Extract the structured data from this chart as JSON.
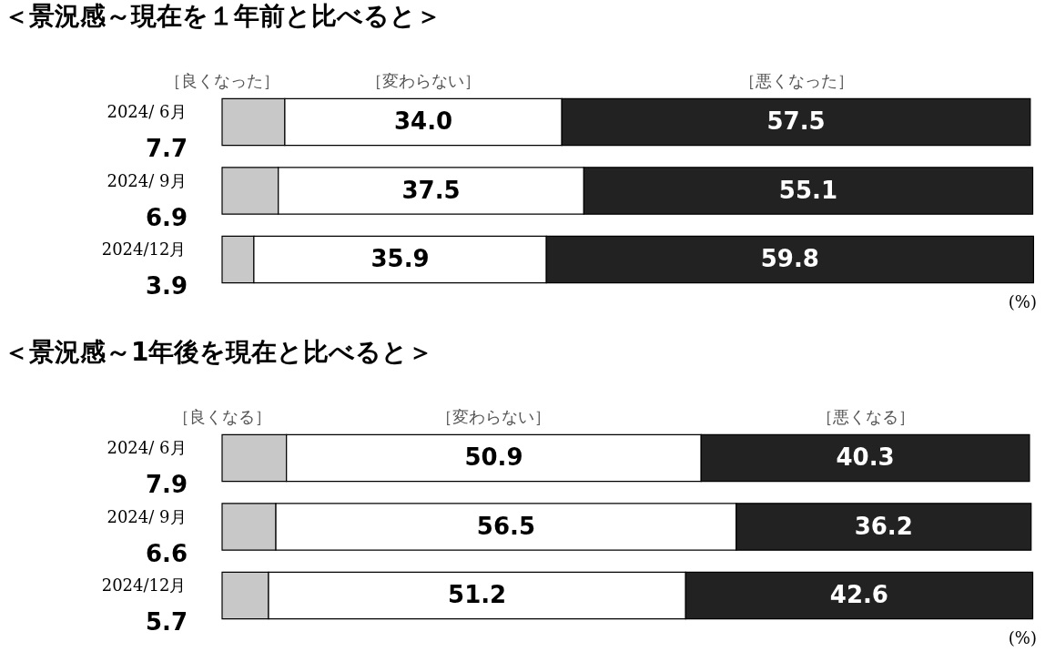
{
  "chart_data": [
    {
      "type": "bar",
      "title": "＜景況感～現在を１年前と比べると＞",
      "orientation": "horizontal",
      "stacked": true,
      "categories": [
        "2024/ 6月",
        "2024/ 9月",
        "2024/12月"
      ],
      "series": [
        {
          "name": "［良くなった］",
          "color": "#c8c8c8",
          "values": [
            7.7,
            6.9,
            3.9
          ],
          "value_labels": [
            "7.7",
            "6.9",
            "3.9"
          ]
        },
        {
          "name": "［変わらない］",
          "color": "#ffffff",
          "values": [
            34.0,
            37.5,
            35.9
          ],
          "value_labels": [
            "34.0",
            "37.5",
            "35.9"
          ]
        },
        {
          "name": "［悪くなった］",
          "color": "#222222",
          "values": [
            57.5,
            55.1,
            59.8
          ],
          "value_labels": [
            "57.5",
            "55.1",
            "59.8"
          ]
        }
      ],
      "xlim": [
        0,
        100
      ],
      "tick_labels": "y",
      "legend": false,
      "annotations": [
        "(%)"
      ]
    },
    {
      "type": "bar",
      "title": "＜景況感～1年後を現在と比べると＞",
      "orientation": "horizontal",
      "stacked": true,
      "categories": [
        "2024/ 6月",
        "2024/ 9月",
        "2024/12月"
      ],
      "series": [
        {
          "name": "［良くなる］",
          "color": "#c8c8c8",
          "values": [
            7.9,
            6.6,
            5.7
          ],
          "value_labels": [
            "7.9",
            "6.6",
            "5.7"
          ]
        },
        {
          "name": "［変わらない］",
          "color": "#ffffff",
          "values": [
            50.9,
            56.5,
            51.2
          ],
          "value_labels": [
            "50.9",
            "56.5",
            "51.2"
          ]
        },
        {
          "name": "［悪くなる］",
          "color": "#222222",
          "values": [
            40.3,
            36.2,
            42.6
          ],
          "value_labels": [
            "40.3",
            "36.2",
            "42.6"
          ]
        }
      ],
      "xlim": [
        0,
        100
      ],
      "tick_labels": "y",
      "legend": false,
      "annotations": [
        "(%)"
      ]
    }
  ]
}
